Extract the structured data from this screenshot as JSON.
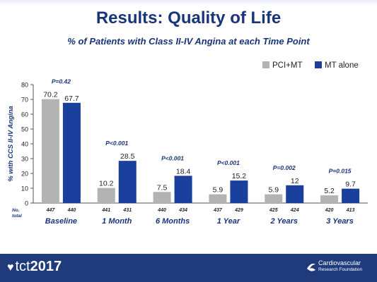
{
  "title": "Results: Quality of Life",
  "subtitle": "% of Patients with Class II-IV Angina at each Time Point",
  "footer": {
    "logo_text": "tct",
    "logo_year": "2017",
    "org_line1": "Cardiovascular",
    "org_line2": "Research Foundation"
  },
  "chart_data": {
    "type": "bar",
    "ylabel": "% with CCS II-IV Angina",
    "ylim": [
      0,
      80
    ],
    "yticks": [
      0,
      10,
      20,
      30,
      40,
      50,
      60,
      70,
      80
    ],
    "categories": [
      "Baseline",
      "1 Month",
      "6 Months",
      "1 Year",
      "2 Years",
      "3 Years"
    ],
    "series": [
      {
        "name": "PCI+MT",
        "values": [
          70.2,
          10.2,
          7.5,
          5.9,
          5.9,
          5.2
        ],
        "color": "#b3b3b3"
      },
      {
        "name": "MT alone",
        "values": [
          67.7,
          28.5,
          18.4,
          15.2,
          12,
          9.7
        ],
        "color": "#1b3f9c"
      }
    ],
    "value_labels": [
      [
        "70.2",
        "10.2",
        "7.5",
        "5.9",
        "5.9",
        "5.2"
      ],
      [
        "67.7",
        "28.5",
        "18.4",
        "15.2",
        "12",
        "9.7"
      ]
    ],
    "p_values": [
      "P=0.42",
      "P<0.001",
      "P<0.001",
      "P<0.001",
      "P=0.002",
      "P=0.015"
    ],
    "n_label": [
      "No.",
      "total"
    ],
    "n_totals": [
      [
        "447",
        "440"
      ],
      [
        "441",
        "431"
      ],
      [
        "440",
        "434"
      ],
      [
        "437",
        "429"
      ],
      [
        "425",
        "424"
      ],
      [
        "420",
        "413"
      ]
    ],
    "legend_position": "top-right",
    "grid": false
  }
}
